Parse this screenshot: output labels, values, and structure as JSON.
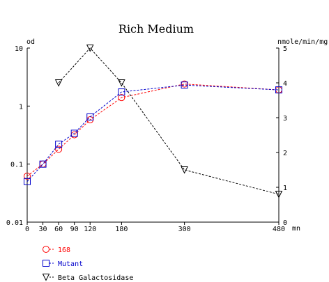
{
  "chart_data": {
    "type": "line",
    "title": "Rich Medium",
    "x_unit": "mn",
    "left_axis": {
      "unit": "od",
      "scale": "log",
      "range": [
        0.01,
        10
      ],
      "tick_labels": [
        "10",
        "1",
        "0.1",
        "0.01"
      ],
      "tick_values": [
        10,
        1,
        0.1,
        0.01
      ]
    },
    "right_axis": {
      "unit": "nmole/min/mg",
      "scale": "linear",
      "range": [
        0,
        5
      ],
      "tick_labels": [
        "5",
        "4",
        "3",
        "2",
        "1",
        "0"
      ],
      "tick_values": [
        5,
        4,
        3,
        2,
        1,
        0
      ]
    },
    "x_tick_labels": [
      "0",
      "30",
      "60",
      "90",
      "120",
      "180",
      "300",
      "480"
    ],
    "x_tick_values": [
      0,
      30,
      60,
      90,
      120,
      180,
      300,
      480
    ],
    "xlim": [
      0,
      480
    ],
    "grid": false,
    "legend_position": "bottom-left",
    "series": [
      {
        "name": "168",
        "axis": "left",
        "marker": "circle",
        "color": "#ff0000",
        "x": [
          0,
          30,
          60,
          90,
          120,
          180,
          300,
          480
        ],
        "y": [
          0.062,
          0.1,
          0.18,
          0.32,
          0.58,
          1.4,
          2.4,
          1.9
        ]
      },
      {
        "name": "Mutant",
        "axis": "left",
        "marker": "square",
        "color": "#0000cc",
        "x": [
          0,
          30,
          60,
          90,
          120,
          180,
          300,
          480
        ],
        "y": [
          0.05,
          0.1,
          0.22,
          0.34,
          0.65,
          1.75,
          2.3,
          1.9
        ]
      },
      {
        "name": "Beta Galactosidase",
        "axis": "right",
        "marker": "triangle-down",
        "color": "#000000",
        "x": [
          60,
          120,
          180,
          300,
          480
        ],
        "y": [
          4.0,
          5.0,
          4.0,
          1.5,
          0.8
        ]
      }
    ]
  }
}
